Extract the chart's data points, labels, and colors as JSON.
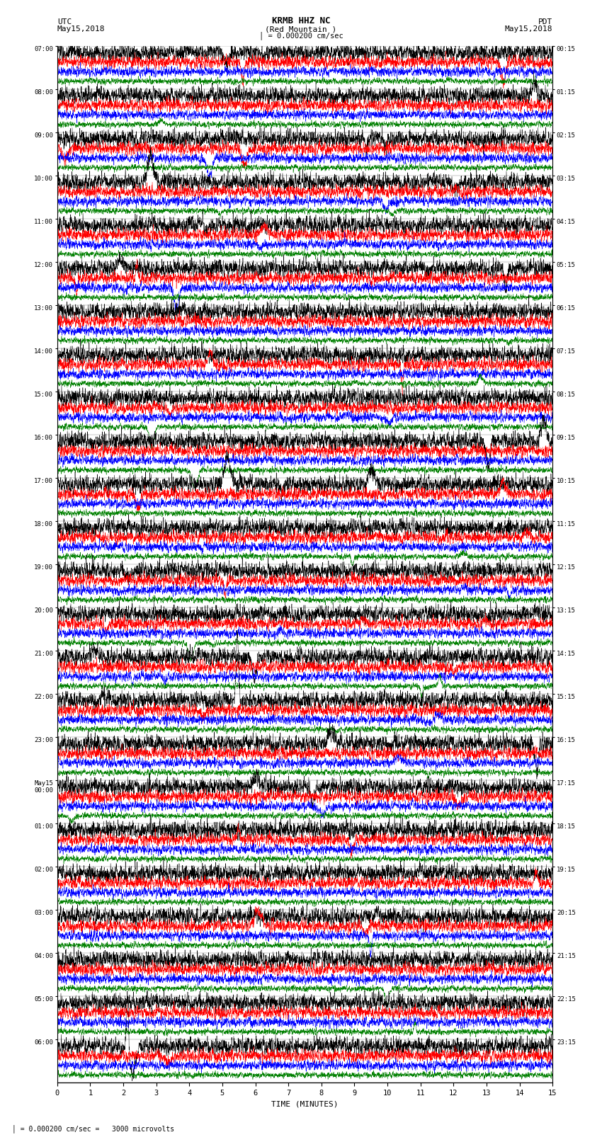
{
  "title1": "KRMB HHZ NC",
  "title2": "(Red Mountain )",
  "scale_text": "= 0.000200 cm/sec",
  "bottom_text": "= 0.000200 cm/sec =   3000 microvolts",
  "xlabel": "TIME (MINUTES)",
  "utc_times_labeled": [
    "07:00",
    "08:00",
    "09:00",
    "10:00",
    "11:00",
    "12:00",
    "13:00",
    "14:00",
    "15:00",
    "16:00",
    "17:00",
    "18:00",
    "19:00",
    "20:00",
    "21:00",
    "22:00",
    "23:00",
    "May15\n00:00",
    "01:00",
    "02:00",
    "03:00",
    "04:00",
    "05:00",
    "06:00"
  ],
  "pdt_times_labeled": [
    "00:15",
    "01:15",
    "02:15",
    "03:15",
    "04:15",
    "05:15",
    "06:15",
    "07:15",
    "08:15",
    "09:15",
    "10:15",
    "11:15",
    "12:15",
    "13:15",
    "14:15",
    "15:15",
    "16:15",
    "17:15",
    "18:15",
    "19:15",
    "20:15",
    "21:15",
    "22:15",
    "23:15"
  ],
  "num_hour_groups": 24,
  "traces_per_group": 4,
  "colors": [
    "black",
    "red",
    "blue",
    "green"
  ],
  "bg_color": "white",
  "fig_width": 8.5,
  "fig_height": 16.13,
  "seed": 42
}
